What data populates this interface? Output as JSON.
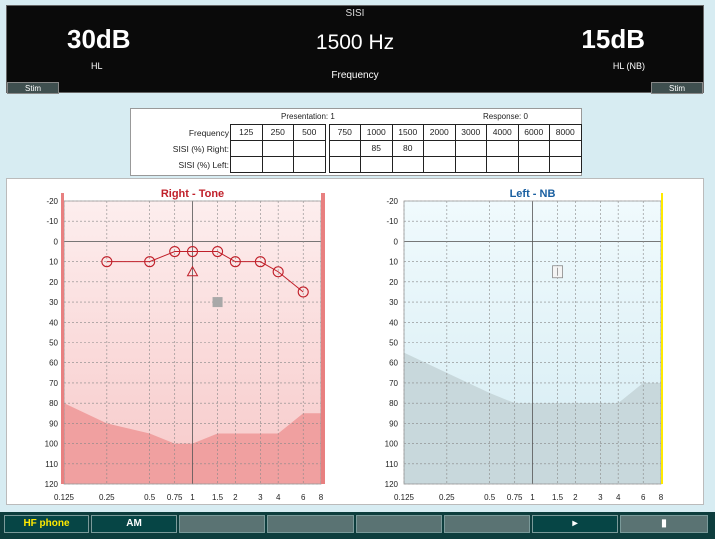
{
  "header": {
    "title": "SISI",
    "left_level": "30dB",
    "left_label": "HL",
    "center_freq": "1500 Hz",
    "center_label": "Frequency",
    "right_level": "15dB",
    "right_label": "HL (NB)",
    "stim_left": "Stim",
    "stim_right": "Stim"
  },
  "sisi_table": {
    "presentation": "Presentation: 1",
    "response": "Response: 0",
    "row_frequency": "Frequency",
    "row_right": "SISI (%) Right:",
    "row_left": "SISI (%) Left:",
    "frequencies": [
      "125",
      "250",
      "500",
      "750",
      "1000",
      "1500",
      "2000",
      "3000",
      "4000",
      "6000",
      "8000"
    ],
    "right_values": [
      "",
      "",
      "",
      "",
      "85",
      "80",
      "",
      "",
      "",
      "",
      ""
    ],
    "left_values": [
      "",
      "",
      "",
      "",
      "",
      "",
      "",
      "",
      "",
      "",
      ""
    ]
  },
  "chart_data": [
    {
      "type": "line",
      "title": "Right - Tone",
      "xlabel": "",
      "ylabel": "",
      "x_ticks": [
        "0.125",
        "0.25",
        "0.5",
        "0.75",
        "1",
        "1.5",
        "2",
        "3",
        "4",
        "6",
        "8"
      ],
      "y_ticks": [
        "-20",
        "-10",
        "0",
        "10",
        "20",
        "30",
        "40",
        "50",
        "60",
        "70",
        "80",
        "90",
        "100",
        "110",
        "120"
      ],
      "ylim": [
        -20,
        120
      ],
      "y_inverted": true,
      "accent": "#c0202a",
      "series": [
        {
          "marker": "circle",
          "x": [
            0.25,
            0.5,
            0.75,
            1,
            1.5,
            2,
            3,
            4,
            6
          ],
          "y": [
            10,
            10,
            5,
            5,
            5,
            10,
            10,
            15,
            25
          ]
        }
      ],
      "single_points": [
        {
          "marker": "triangle",
          "x": 1,
          "y": 15
        },
        {
          "marker": "square-gray",
          "x": 1.5,
          "y": 30
        }
      ],
      "shaded_area": {
        "x": [
          0.125,
          0.25,
          0.5,
          0.75,
          1,
          1.5,
          2,
          3,
          4,
          6,
          8
        ],
        "y": [
          80,
          90,
          95,
          100,
          100,
          95,
          95,
          95,
          95,
          85,
          85
        ]
      },
      "grid": true
    },
    {
      "type": "line",
      "title": "Left - NB",
      "xlabel": "",
      "ylabel": "",
      "x_ticks": [
        "0.125",
        "0.25",
        "0.5",
        "0.75",
        "1",
        "1.5",
        "2",
        "3",
        "4",
        "6",
        "8"
      ],
      "y_ticks": [
        "-20",
        "-10",
        "0",
        "10",
        "20",
        "30",
        "40",
        "50",
        "60",
        "70",
        "80",
        "90",
        "100",
        "110",
        "120"
      ],
      "ylim": [
        -20,
        120
      ],
      "y_inverted": true,
      "accent": "#1a5fa0",
      "series": [],
      "single_points": [
        {
          "marker": "square-outline",
          "x": 1.5,
          "y": 15
        }
      ],
      "shaded_area": {
        "x": [
          0.125,
          0.25,
          0.5,
          0.75,
          1,
          1.5,
          2,
          3,
          4,
          6,
          8
        ],
        "y": [
          55,
          65,
          75,
          80,
          80,
          80,
          80,
          80,
          80,
          70,
          70
        ]
      },
      "grid": true
    }
  ],
  "function_keys": [
    {
      "label": "HF phone",
      "style": "active-yellow"
    },
    {
      "label": "AM",
      "style": "active"
    },
    {
      "label": "",
      "style": ""
    },
    {
      "label": "",
      "style": ""
    },
    {
      "label": "",
      "style": ""
    },
    {
      "label": "",
      "style": ""
    },
    {
      "label": "▸",
      "style": "active"
    },
    {
      "label": "▮",
      "style": ""
    }
  ]
}
